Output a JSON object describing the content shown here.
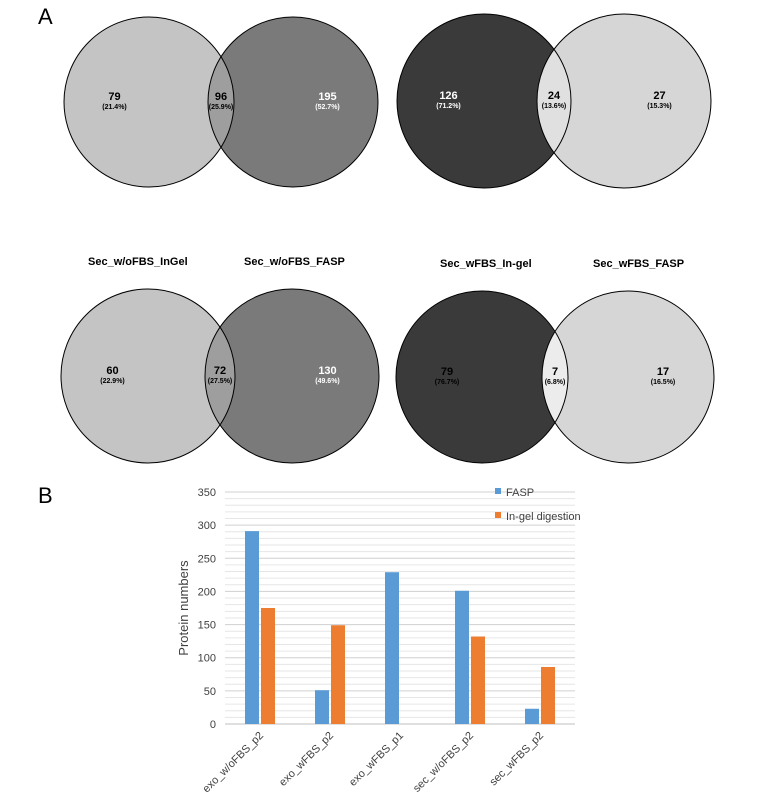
{
  "panels": {
    "a": "A",
    "b": "B"
  },
  "venns": [
    {
      "left_label": "",
      "right_label": "",
      "left": {
        "n": "79",
        "pct": "(21.4%)"
      },
      "both": {
        "n": "96",
        "pct": "(25.9%)"
      },
      "right": {
        "n": "195",
        "pct": "(52.7%)"
      },
      "colors": {
        "left": "#c4c4c4",
        "overlap": "#9e9e9e",
        "right": "#7a7a7a"
      },
      "text_colors": {
        "left": "#000000",
        "both": "#000000",
        "right": "#ffffff"
      }
    },
    {
      "left_label": "",
      "right_label": "",
      "left": {
        "n": "126",
        "pct": "(71.2%)"
      },
      "both": {
        "n": "24",
        "pct": "(13.6%)"
      },
      "right": {
        "n": "27",
        "pct": "(15.3%)"
      },
      "colors": {
        "left": "#3a3a3a",
        "overlap": "#e0e0e0",
        "right": "#d6d6d6"
      },
      "text_colors": {
        "left": "#ffffff",
        "both": "#000000",
        "right": "#000000"
      }
    },
    {
      "left_label": "Sec_w/oFBS_InGel",
      "right_label": "Sec_w/oFBS_FASP",
      "left": {
        "n": "60",
        "pct": "(22.9%)"
      },
      "both": {
        "n": "72",
        "pct": "(27.5%)"
      },
      "right": {
        "n": "130",
        "pct": "(49.6%)"
      },
      "colors": {
        "left": "#c4c4c4",
        "overlap": "#9e9e9e",
        "right": "#7a7a7a"
      },
      "text_colors": {
        "left": "#000000",
        "both": "#000000",
        "right": "#ffffff"
      }
    },
    {
      "left_label": "Sec_wFBS_In-gel",
      "right_label": "Sec_wFBS_FASP",
      "left": {
        "n": "79",
        "pct": "(76.7%)"
      },
      "both": {
        "n": "7",
        "pct": "(6.8%)"
      },
      "right": {
        "n": "17",
        "pct": "(16.5%)"
      },
      "colors": {
        "left": "#3a3a3a",
        "overlap": "#ececec",
        "right": "#d6d6d6"
      },
      "text_colors": {
        "left": "#000000",
        "both": "#000000",
        "right": "#000000"
      }
    }
  ],
  "chart_data": {
    "type": "bar",
    "categories": [
      "exo_w/oFBS_p2",
      "exo_wFBS_p2",
      "exo_wFBS_p1",
      "sec_w/oFBS_p2",
      "sec_wFBS_p2"
    ],
    "series": [
      {
        "name": "FASP",
        "color": "#5b9bd5",
        "values": [
          291,
          51,
          229,
          201,
          23
        ]
      },
      {
        "name": "In-gel digestion",
        "color": "#ed7d31",
        "values": [
          175,
          149,
          0,
          132,
          86
        ]
      }
    ],
    "ylabel": "Protein numbers",
    "ylim": [
      0,
      350
    ],
    "yticks": [
      0,
      50,
      100,
      150,
      200,
      250,
      300,
      350
    ],
    "grid": true,
    "legend_position": "top-right"
  }
}
